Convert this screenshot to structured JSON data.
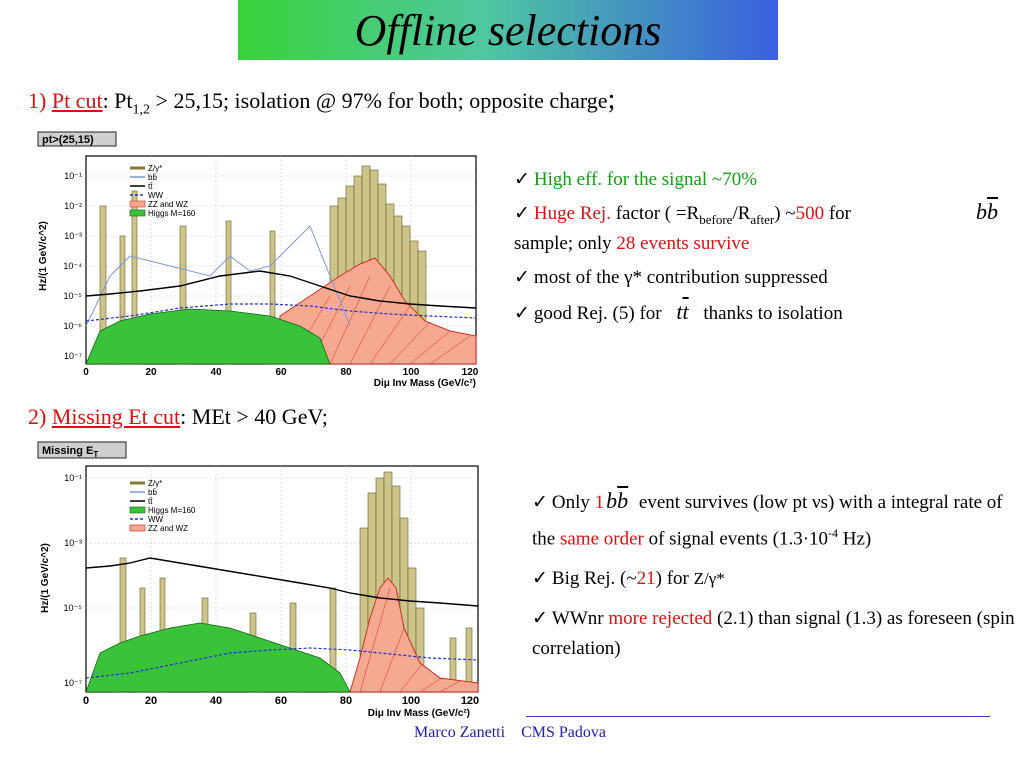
{
  "title": "Offline selections",
  "sec1": {
    "num": "1)",
    "name": "Pt cut",
    "sep": ": Pt",
    "sub": "1,2",
    "rest": " > 25,15; isolation @ 97% for both; opposite charge",
    "end": ";"
  },
  "sec2": {
    "num": "2)",
    "name": "Missing Et cut",
    "rest": ": MEt > 40 GeV;"
  },
  "plot1": {
    "label": "pt>(25,15)",
    "ylabel": "Hz/(1 GeV/c^2)",
    "xlabel": "Diμ Inv Mass (GeV/c²)",
    "legend": [
      "Z/γ*",
      "bb̄",
      "tt̄",
      "WW",
      "ZZ and WZ",
      "Higgs M=160"
    ],
    "xticks": [
      "0",
      "20",
      "40",
      "60",
      "80",
      "100",
      "120"
    ],
    "yticks": [
      "10⁻¹",
      "10⁻²",
      "10⁻³",
      "10⁻⁴",
      "10⁻⁵",
      "10⁻⁶",
      "10⁻⁷"
    ]
  },
  "plot2": {
    "label": "Missing E",
    "label_sub": "T",
    "ylabel": "Hz/(1 GeV/c^2)",
    "xlabel": "Diμ Inv Mass (GeV/c²)",
    "legend": [
      "Z/γ*",
      "bb̄",
      "tt̄",
      "Higgs M=160",
      "WW",
      "ZZ and WZ"
    ],
    "xticks": [
      "0",
      "20",
      "40",
      "60",
      "80",
      "100",
      "120"
    ],
    "yticks": [
      "10⁻¹",
      "10⁻³",
      "10⁻⁵",
      "10⁻⁷"
    ]
  },
  "bullets1": {
    "b1": "High eff. for the signal ~70%",
    "b2_a": "Huge Rej.",
    "b2_b": " factor ( =R",
    "b2_sub1": "before",
    "b2_c": "/R",
    "b2_sub2": "after",
    "b2_d": ") ~",
    "b2_e": "500",
    "b2_f": " for",
    "b2_g": "sample; only ",
    "b2_h": "28 events survive",
    "b3": "most of the γ* contribution suppressed",
    "b4_a": "good Rej. (5) for",
    "b4_b": "thanks to isolation"
  },
  "bullets2": {
    "b1_a": "Only ",
    "b1_b": "1",
    "b1_c": " event survives (low pt νs) with a integral rate of the ",
    "b1_d": "same order",
    "b1_e": " of  signal events (1.3·10",
    "b1_sup": "-4",
    "b1_f": " Hz)",
    "b2_a": "Big Rej. (~",
    "b2_b": "21",
    "b2_c": ") for ",
    "b2_d": "Z/γ*",
    "b3_a": "WWnr ",
    "b3_b": "more rejected",
    "b3_c": " (2.1) than signal (1.3) as foreseen (spin correlation)"
  },
  "symbols": {
    "bb": "b",
    "tt": "t",
    "check": "✓"
  },
  "footer": {
    "author": "Marco Zanetti",
    "group": "CMS Padova"
  },
  "colors": {
    "accent_red": "#e01010",
    "accent_green": "#12a012",
    "footer_blue": "#2020b0"
  }
}
